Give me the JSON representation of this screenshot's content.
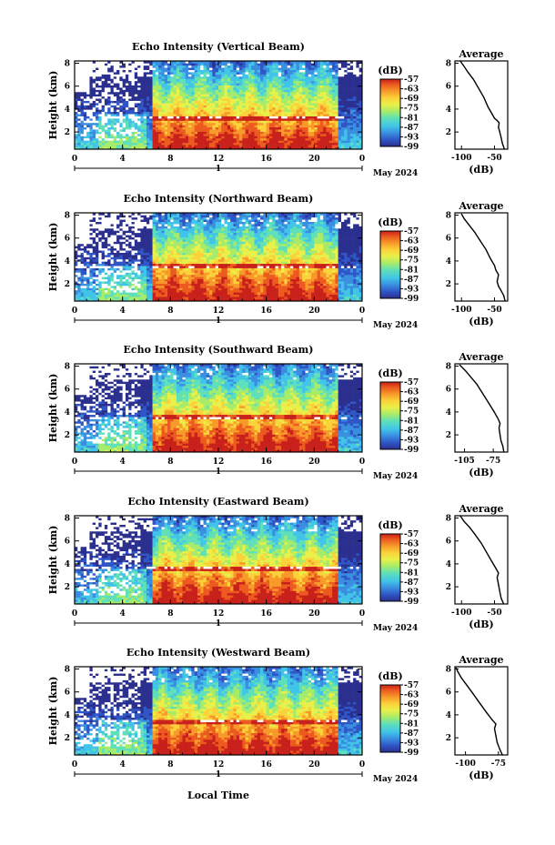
{
  "figure": {
    "x_axis_label": "Local Time",
    "x_ticks": [
      "0",
      "4",
      "8",
      "12",
      "16",
      "20",
      "0"
    ],
    "day_label": "1",
    "month_label": "May 2024",
    "colorbar_unit": "(dB)",
    "colorbar_ticks": [
      "-57",
      "-63",
      "-69",
      "-75",
      "-81",
      "-87",
      "-93",
      "-99"
    ],
    "profile_title": "Average",
    "profile_xlabel": "(dB)"
  },
  "chart_data": [
    {
      "type": "heatmap",
      "title": "Echo Intensity (Vertical Beam)",
      "ylabel": "Height (km)",
      "y_ticks": [
        "2",
        "4",
        "6",
        "8"
      ],
      "xlim": [
        0,
        24
      ],
      "ylim": [
        0.5,
        8.2
      ],
      "colorbar_range": [
        -99,
        -57
      ],
      "inversion_height_km": 3.2,
      "profile": {
        "title": "Average",
        "xlabel": "(dB)",
        "x_ticks": [
          "-100",
          "-50"
        ],
        "xlim": [
          -110,
          -30
        ],
        "points": [
          [
            -35,
            0.5
          ],
          [
            -38,
            1.0
          ],
          [
            -40,
            1.5
          ],
          [
            -42,
            2.0
          ],
          [
            -44,
            2.4
          ],
          [
            -43,
            2.8
          ],
          [
            -46,
            3.0
          ],
          [
            -50,
            3.2
          ],
          [
            -54,
            3.6
          ],
          [
            -60,
            4.2
          ],
          [
            -66,
            5.0
          ],
          [
            -74,
            5.8
          ],
          [
            -82,
            6.6
          ],
          [
            -90,
            7.2
          ],
          [
            -97,
            7.8
          ],
          [
            -102,
            8.2
          ]
        ]
      }
    },
    {
      "type": "heatmap",
      "title": "Echo Intensity (Northward Beam)",
      "ylabel": "Height (km)",
      "y_ticks": [
        "2",
        "4",
        "6",
        "8"
      ],
      "xlim": [
        0,
        24
      ],
      "ylim": [
        0.5,
        8.2
      ],
      "colorbar_range": [
        -99,
        -57
      ],
      "inversion_height_km": 3.5,
      "profile": {
        "title": "Average",
        "xlabel": "(dB)",
        "x_ticks": [
          "-100",
          "-50"
        ],
        "xlim": [
          -110,
          -30
        ],
        "points": [
          [
            -34,
            0.5
          ],
          [
            -36,
            1.0
          ],
          [
            -40,
            1.4
          ],
          [
            -44,
            1.8
          ],
          [
            -46,
            2.2
          ],
          [
            -44,
            2.8
          ],
          [
            -48,
            3.2
          ],
          [
            -50,
            3.6
          ],
          [
            -56,
            4.2
          ],
          [
            -63,
            5.0
          ],
          [
            -72,
            5.8
          ],
          [
            -80,
            6.5
          ],
          [
            -88,
            7.1
          ],
          [
            -96,
            7.7
          ],
          [
            -100,
            8.1
          ]
        ]
      }
    },
    {
      "type": "heatmap",
      "title": "Echo Intensity (Southward Beam)",
      "ylabel": "Height (km)",
      "y_ticks": [
        "2",
        "4",
        "6",
        "8"
      ],
      "xlim": [
        0,
        24
      ],
      "ylim": [
        0.5,
        8.2
      ],
      "colorbar_range": [
        -99,
        -57
      ],
      "inversion_height_km": 3.5,
      "profile": {
        "title": "Average",
        "xlabel": "(dB)",
        "x_ticks": [
          "-105",
          "-75"
        ],
        "xlim": [
          -115,
          -60
        ],
        "points": [
          [
            -64,
            0.5
          ],
          [
            -65,
            1.0
          ],
          [
            -67,
            1.5
          ],
          [
            -68,
            2.0
          ],
          [
            -69,
            2.6
          ],
          [
            -68,
            3.0
          ],
          [
            -70,
            3.4
          ],
          [
            -74,
            4.0
          ],
          [
            -80,
            4.8
          ],
          [
            -86,
            5.6
          ],
          [
            -92,
            6.4
          ],
          [
            -98,
            7.0
          ],
          [
            -104,
            7.6
          ],
          [
            -110,
            8.1
          ]
        ]
      }
    },
    {
      "type": "heatmap",
      "title": "Echo Intensity (Eastward Beam)",
      "ylabel": "Height (km)",
      "y_ticks": [
        "2",
        "4",
        "6",
        "8"
      ],
      "xlim": [
        0,
        24
      ],
      "ylim": [
        0.5,
        8.2
      ],
      "colorbar_range": [
        -99,
        -57
      ],
      "inversion_height_km": 3.6,
      "profile": {
        "title": "Average",
        "xlabel": "(dB)",
        "x_ticks": [
          "-100",
          "-50"
        ],
        "xlim": [
          -110,
          -30
        ],
        "points": [
          [
            -36,
            0.5
          ],
          [
            -40,
            1.0
          ],
          [
            -42,
            1.6
          ],
          [
            -44,
            2.2
          ],
          [
            -46,
            2.8
          ],
          [
            -44,
            3.2
          ],
          [
            -48,
            3.6
          ],
          [
            -54,
            4.2
          ],
          [
            -62,
            5.0
          ],
          [
            -70,
            5.8
          ],
          [
            -80,
            6.6
          ],
          [
            -88,
            7.2
          ],
          [
            -96,
            7.7
          ],
          [
            -102,
            8.2
          ]
        ]
      }
    },
    {
      "type": "heatmap",
      "title": "Echo Intensity (Westward Beam)",
      "ylabel": "Height (km)",
      "y_ticks": [
        "2",
        "4",
        "6",
        "8"
      ],
      "xlim": [
        0,
        24
      ],
      "ylim": [
        0.5,
        8.2
      ],
      "colorbar_range": [
        -99,
        -57
      ],
      "inversion_height_km": 3.4,
      "profile": {
        "title": "Average",
        "xlabel": "(dB)",
        "x_ticks": [
          "-100",
          "-75"
        ],
        "xlim": [
          -108,
          -68
        ],
        "points": [
          [
            -72,
            0.5
          ],
          [
            -74,
            1.0
          ],
          [
            -76,
            1.6
          ],
          [
            -77,
            2.2
          ],
          [
            -78,
            2.8
          ],
          [
            -77,
            3.2
          ],
          [
            -80,
            3.6
          ],
          [
            -84,
            4.2
          ],
          [
            -89,
            5.0
          ],
          [
            -94,
            5.8
          ],
          [
            -99,
            6.6
          ],
          [
            -103,
            7.2
          ],
          [
            -106,
            7.8
          ],
          [
            -107,
            8.1
          ]
        ]
      }
    }
  ],
  "colors": {
    "missing": "#ffffff",
    "colormap": [
      "#2b2f8e",
      "#2f56c6",
      "#3a8ee0",
      "#41c4e8",
      "#5fe0b8",
      "#a6eb6a",
      "#e8f04a",
      "#fbd23a",
      "#f79a2a",
      "#ec5a1f",
      "#c8201a"
    ]
  }
}
